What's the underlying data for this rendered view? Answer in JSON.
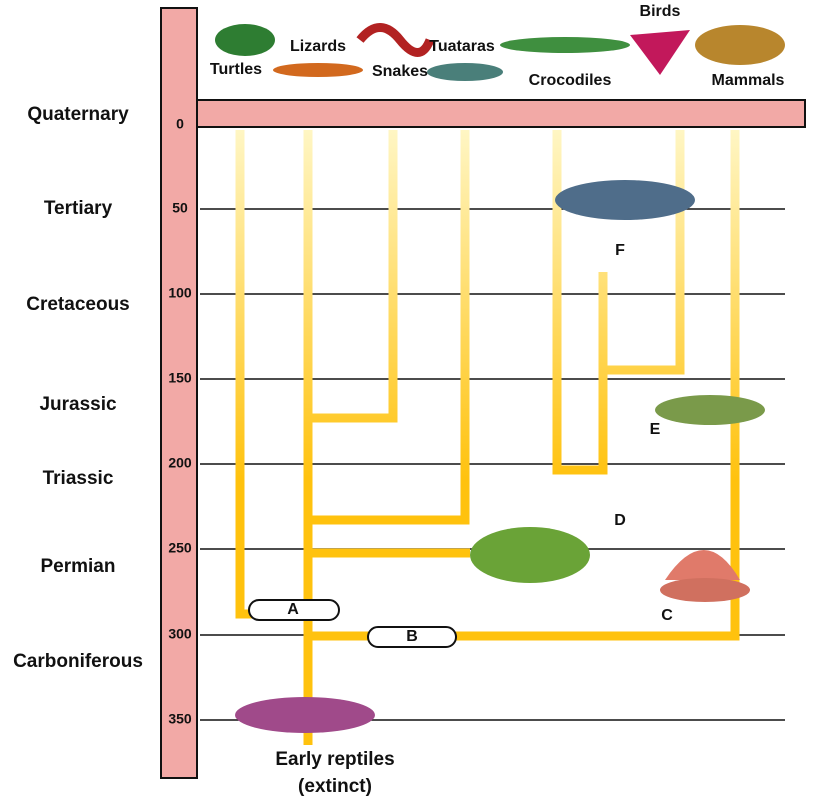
{
  "periods": [
    "Quaternary",
    "Tertiary",
    "Cretaceous",
    "Jurassic",
    "Triassic",
    "Permian",
    "Carboniferous"
  ],
  "time_axis": {
    "ticks": [
      0,
      50,
      100,
      150,
      200,
      250,
      300,
      350
    ]
  },
  "taxa": [
    "Turtles",
    "Lizards",
    "Snakes",
    "Tuataras",
    "Crocodiles",
    "Birds",
    "Mammals"
  ],
  "markers": [
    "A",
    "B",
    "C",
    "D",
    "E",
    "F"
  ],
  "root": [
    "Early reptiles",
    "(extinct)"
  ]
}
